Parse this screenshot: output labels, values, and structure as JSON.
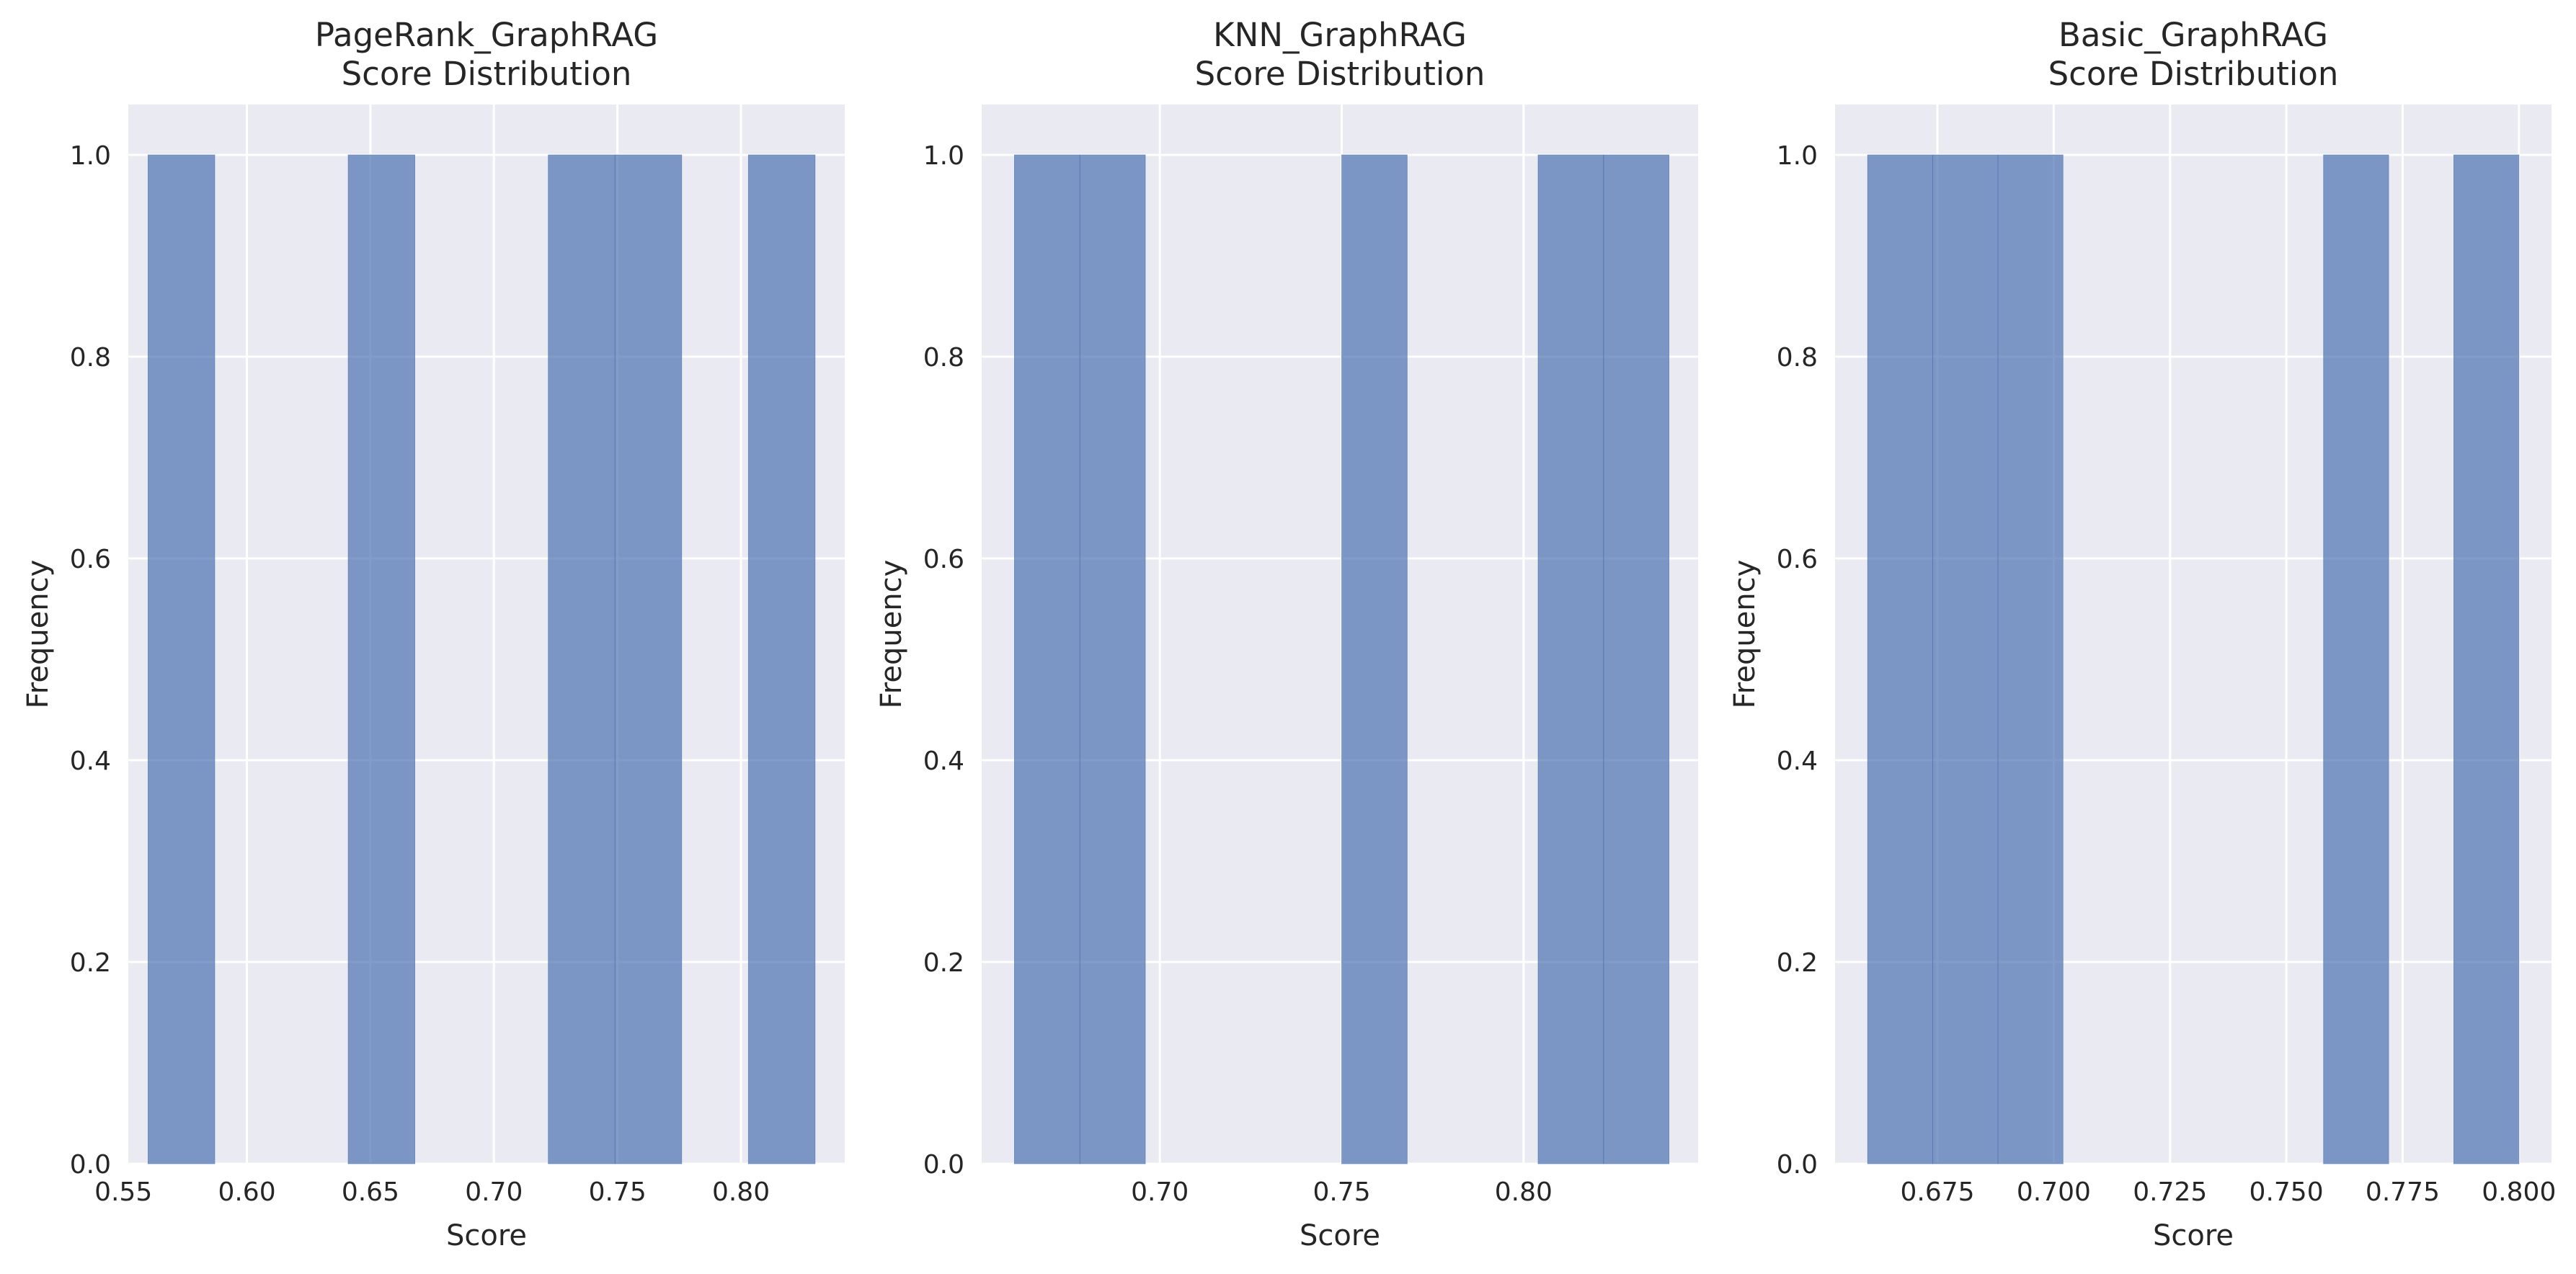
{
  "chart_data": [
    {
      "type": "bar",
      "subtype": "histogram",
      "title_lines": [
        "PageRank_GraphRAG",
        "Score Distribution"
      ],
      "xlabel": "Score",
      "ylabel": "Frequency",
      "xlim": [
        0.552,
        0.842
      ],
      "ylim": [
        0,
        1.05
      ],
      "xticks": [
        0.55,
        0.6,
        0.65,
        0.7,
        0.75,
        0.8
      ],
      "xtick_labels": [
        "0.55",
        "0.60",
        "0.65",
        "0.70",
        "0.75",
        "0.80"
      ],
      "yticks": [
        0.0,
        0.2,
        0.4,
        0.6,
        0.8,
        1.0
      ],
      "ytick_labels": [
        "0.0",
        "0.2",
        "0.4",
        "0.6",
        "0.8",
        "1.0"
      ],
      "bins": [
        {
          "x0": 0.56,
          "x1": 0.587,
          "count": 1
        },
        {
          "x0": 0.641,
          "x1": 0.668,
          "count": 1
        },
        {
          "x0": 0.722,
          "x1": 0.749,
          "count": 1
        },
        {
          "x0": 0.749,
          "x1": 0.776,
          "count": 1
        },
        {
          "x0": 0.803,
          "x1": 0.83,
          "count": 1
        }
      ],
      "grid": true,
      "color": "#4c72b0"
    },
    {
      "type": "bar",
      "subtype": "histogram",
      "title_lines": [
        "KNN_GraphRAG",
        "Score Distribution"
      ],
      "xlabel": "Score",
      "ylabel": "Frequency",
      "xlim": [
        0.651,
        0.848
      ],
      "ylim": [
        0,
        1.05
      ],
      "xticks": [
        0.7,
        0.75,
        0.8
      ],
      "xtick_labels": [
        "0.70",
        "0.75",
        "0.80"
      ],
      "yticks": [
        0.0,
        0.2,
        0.4,
        0.6,
        0.8,
        1.0
      ],
      "ytick_labels": [
        "0.0",
        "0.2",
        "0.4",
        "0.6",
        "0.8",
        "1.0"
      ],
      "bins": [
        {
          "x0": 0.66,
          "x1": 0.678,
          "count": 1
        },
        {
          "x0": 0.678,
          "x1": 0.696,
          "count": 1
        },
        {
          "x0": 0.75,
          "x1": 0.768,
          "count": 1
        },
        {
          "x0": 0.804,
          "x1": 0.822,
          "count": 1
        },
        {
          "x0": 0.822,
          "x1": 0.84,
          "count": 1
        }
      ],
      "grid": true,
      "color": "#4c72b0"
    },
    {
      "type": "bar",
      "subtype": "histogram",
      "title_lines": [
        "Basic_GraphRAG",
        "Score Distribution"
      ],
      "xlabel": "Score",
      "ylabel": "Frequency",
      "xlim": [
        0.653,
        0.807
      ],
      "ylim": [
        0,
        1.05
      ],
      "xticks": [
        0.675,
        0.7,
        0.725,
        0.75,
        0.775,
        0.8
      ],
      "xtick_labels": [
        "0.675",
        "0.700",
        "0.725",
        "0.750",
        "0.775",
        "0.800"
      ],
      "yticks": [
        0.0,
        0.2,
        0.4,
        0.6,
        0.8,
        1.0
      ],
      "ytick_labels": [
        "0.0",
        "0.2",
        "0.4",
        "0.6",
        "0.8",
        "1.0"
      ],
      "bins": [
        {
          "x0": 0.66,
          "x1": 0.674,
          "count": 1
        },
        {
          "x0": 0.674,
          "x1": 0.688,
          "count": 1
        },
        {
          "x0": 0.688,
          "x1": 0.702,
          "count": 1
        },
        {
          "x0": 0.758,
          "x1": 0.772,
          "count": 1
        },
        {
          "x0": 0.786,
          "x1": 0.8,
          "count": 1
        }
      ],
      "grid": true,
      "color": "#4c72b0"
    }
  ]
}
